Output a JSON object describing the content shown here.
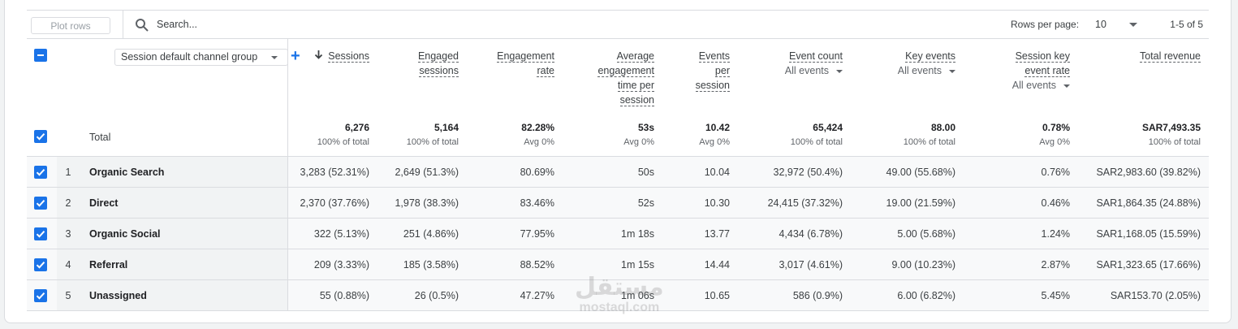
{
  "toolbar": {
    "plot_rows": "Plot rows",
    "search": "Search...",
    "rows_per_page_label": "Rows per page:",
    "rows_per_page": "10",
    "range": "1-5 of 5"
  },
  "dimension": "Session default channel group",
  "total_label": "Total",
  "columns": [
    {
      "title": "Sessions",
      "total": "6,276",
      "total_note": "100% of total"
    },
    {
      "title": "Engaged sessions",
      "total": "5,164",
      "total_note": "100% of total"
    },
    {
      "title": "Engagement rate",
      "total": "82.28%",
      "total_note": "Avg 0%"
    },
    {
      "title": "Average engagement time per session",
      "total": "53s",
      "total_note": "Avg 0%"
    },
    {
      "title": "Events per session",
      "total": "10.42",
      "total_note": "Avg 0%"
    },
    {
      "title": "Event count",
      "filter": "All events",
      "total": "65,424",
      "total_note": "100% of total"
    },
    {
      "title": "Key events",
      "filter": "All events",
      "total": "88.00",
      "total_note": "100% of total"
    },
    {
      "title": "Session key event rate",
      "filter": "All events",
      "total": "0.78%",
      "total_note": "Avg 0%"
    },
    {
      "title": "Total revenue",
      "total": "SAR7,493.35",
      "total_note": "100% of total"
    }
  ],
  "rows": [
    {
      "index": 1,
      "name": "Organic Search",
      "cells": [
        "3,283 (52.31%)",
        "2,649 (51.3%)",
        "80.69%",
        "50s",
        "10.04",
        "32,972 (50.4%)",
        "49.00 (55.68%)",
        "0.76%",
        "SAR2,983.60 (39.82%)"
      ]
    },
    {
      "index": 2,
      "name": "Direct",
      "cells": [
        "2,370 (37.76%)",
        "1,978 (38.3%)",
        "83.46%",
        "52s",
        "10.30",
        "24,415 (37.32%)",
        "19.00 (21.59%)",
        "0.46%",
        "SAR1,864.35 (24.88%)"
      ]
    },
    {
      "index": 3,
      "name": "Organic Social",
      "cells": [
        "322 (5.13%)",
        "251 (4.86%)",
        "77.95%",
        "1m 18s",
        "13.77",
        "4,434 (6.78%)",
        "5.00 (5.68%)",
        "1.24%",
        "SAR1,168.05 (15.59%)"
      ]
    },
    {
      "index": 4,
      "name": "Referral",
      "cells": [
        "209 (3.33%)",
        "185 (3.58%)",
        "88.52%",
        "1m 15s",
        "14.44",
        "3,017 (4.61%)",
        "9.00 (10.23%)",
        "2.87%",
        "SAR1,323.65 (17.66%)"
      ]
    },
    {
      "index": 5,
      "name": "Unassigned",
      "cells": [
        "55 (0.88%)",
        "26 (0.5%)",
        "47.27%",
        "1m 06s",
        "10.65",
        "586 (0.9%)",
        "6.00 (6.82%)",
        "5.45%",
        "SAR153.70 (2.05%)"
      ]
    }
  ],
  "watermark": {
    "arabic": "مستقل",
    "latin": "mostaql.com"
  }
}
